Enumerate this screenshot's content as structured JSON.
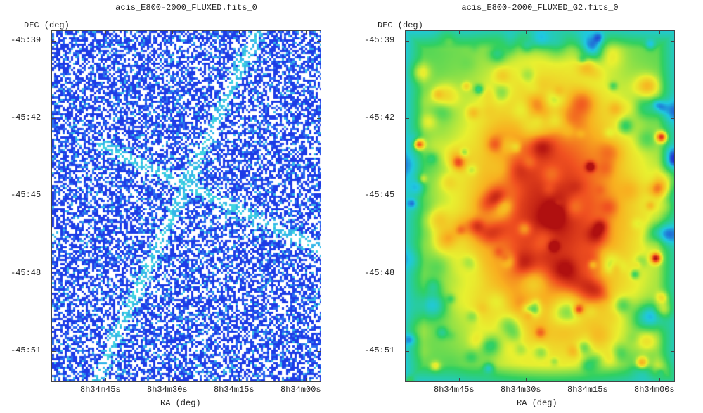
{
  "chart_data": [
    {
      "type": "heatmap",
      "title": "acis_E800-2000_FLUXED.fits_0",
      "xlabel": "RA (deg)",
      "ylabel": "DEC (deg)",
      "x_ticks": [
        "8h34m45s",
        "8h34m30s",
        "8h34m15s",
        "8h34m00s"
      ],
      "y_ticks": [
        "-45:39",
        "-45:42",
        "-45:45",
        "-45:48",
        "-45:51"
      ],
      "colormap": [
        "#ffffff",
        "#1e3ce6",
        "#2a6cf0",
        "#35b6e8",
        "#3fd4e0"
      ],
      "grid": false
    },
    {
      "type": "heatmap",
      "title": "acis_E800-2000_FLUXED_G2.fits_0",
      "xlabel": "RA (deg)",
      "ylabel": "DEC (deg)",
      "x_ticks": [
        "8h34m45s",
        "8h34m30s",
        "8h34m15s",
        "8h34m00s"
      ],
      "y_ticks": [
        "-45:39",
        "-45:42",
        "-45:45",
        "-45:48",
        "-45:51"
      ],
      "colormap": [
        "#2030d0",
        "#20c8e0",
        "#30d060",
        "#e8f030",
        "#f8b020",
        "#f05020",
        "#b01010"
      ],
      "grid": false
    }
  ]
}
